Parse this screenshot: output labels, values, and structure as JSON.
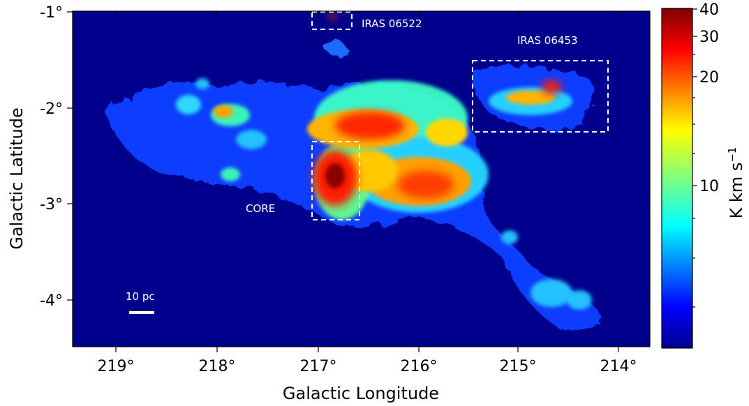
{
  "figure": {
    "xlabel": "Galactic Longitude",
    "ylabel": "Galactic Latitude",
    "x_ticks": [
      "219°",
      "218°",
      "217°",
      "216°",
      "215°",
      "214°"
    ],
    "y_ticks": [
      "-1°",
      "-2°",
      "-3°",
      "-4°"
    ],
    "colorbar": {
      "label": "K km s",
      "label_exponent": "−1",
      "ticks": [
        "40",
        "30",
        "20",
        "10"
      ],
      "scale": "log",
      "colormap": "jet"
    },
    "annotations": {
      "iras06522": "IRAS 06522",
      "iras06453": "IRAS 06453",
      "core": "CORE",
      "scale_bar": "10 pc"
    },
    "colors": {
      "background": "#00008c",
      "dashed_box": "#ffffff"
    }
  }
}
